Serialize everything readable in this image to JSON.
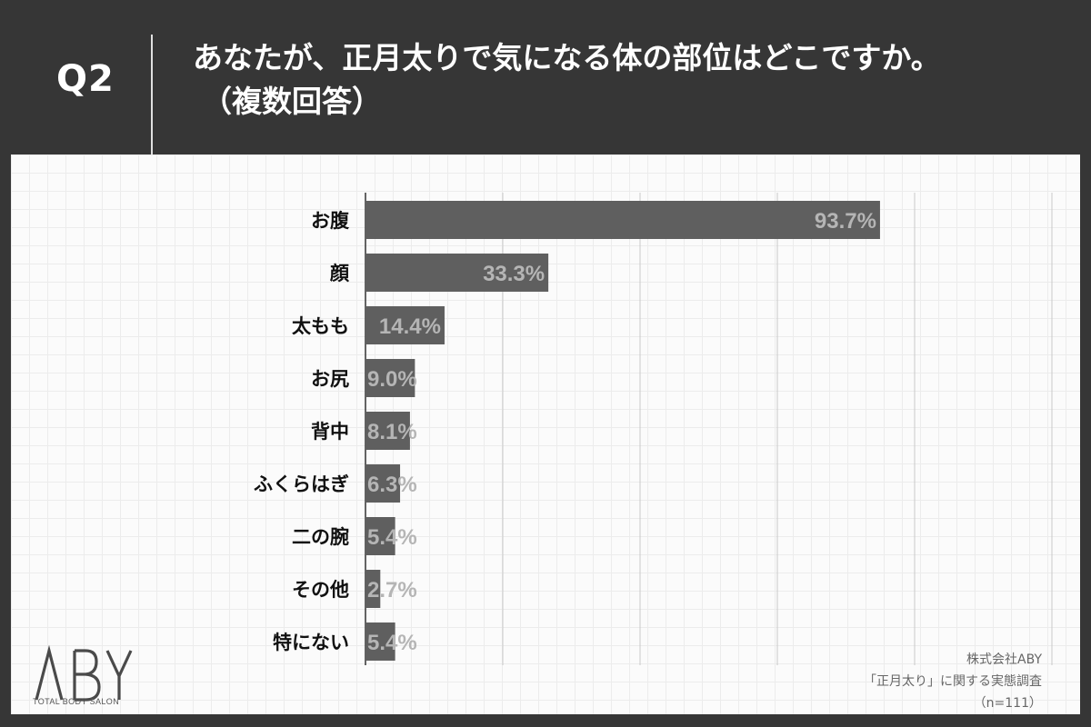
{
  "header": {
    "question_number": "Q2",
    "question_line1": "あなたが、正月太りで気になる体の部位はどこですか。",
    "question_line2": "（複数回答）"
  },
  "chart_data": {
    "type": "bar",
    "orientation": "horizontal",
    "categories": [
      "お腹",
      "顔",
      "太もも",
      "お尻",
      "背中",
      "ふくらはぎ",
      "二の腕",
      "その他",
      "特にない"
    ],
    "values": [
      93.7,
      33.3,
      14.4,
      9.0,
      8.1,
      6.3,
      5.4,
      2.7,
      5.4
    ],
    "value_labels": [
      "93.7%",
      "33.3%",
      "14.4%",
      "9.0%",
      "8.1%",
      "6.3%",
      "5.4%",
      "2.7%",
      "5.4%"
    ],
    "xlim": [
      0,
      125
    ],
    "grid": true,
    "colors": {
      "bar": "#5f5f5f",
      "label": "#b5b5b5",
      "axis": "#333333",
      "grid": "#c8c8c8"
    }
  },
  "footer": {
    "logo_text": "ABY",
    "logo_subtitle": "TOTAL BODY SALON",
    "source_company": "株式会社ABY",
    "source_survey": "「正月太り」に関する実態調査",
    "source_n": "（n=111）"
  }
}
